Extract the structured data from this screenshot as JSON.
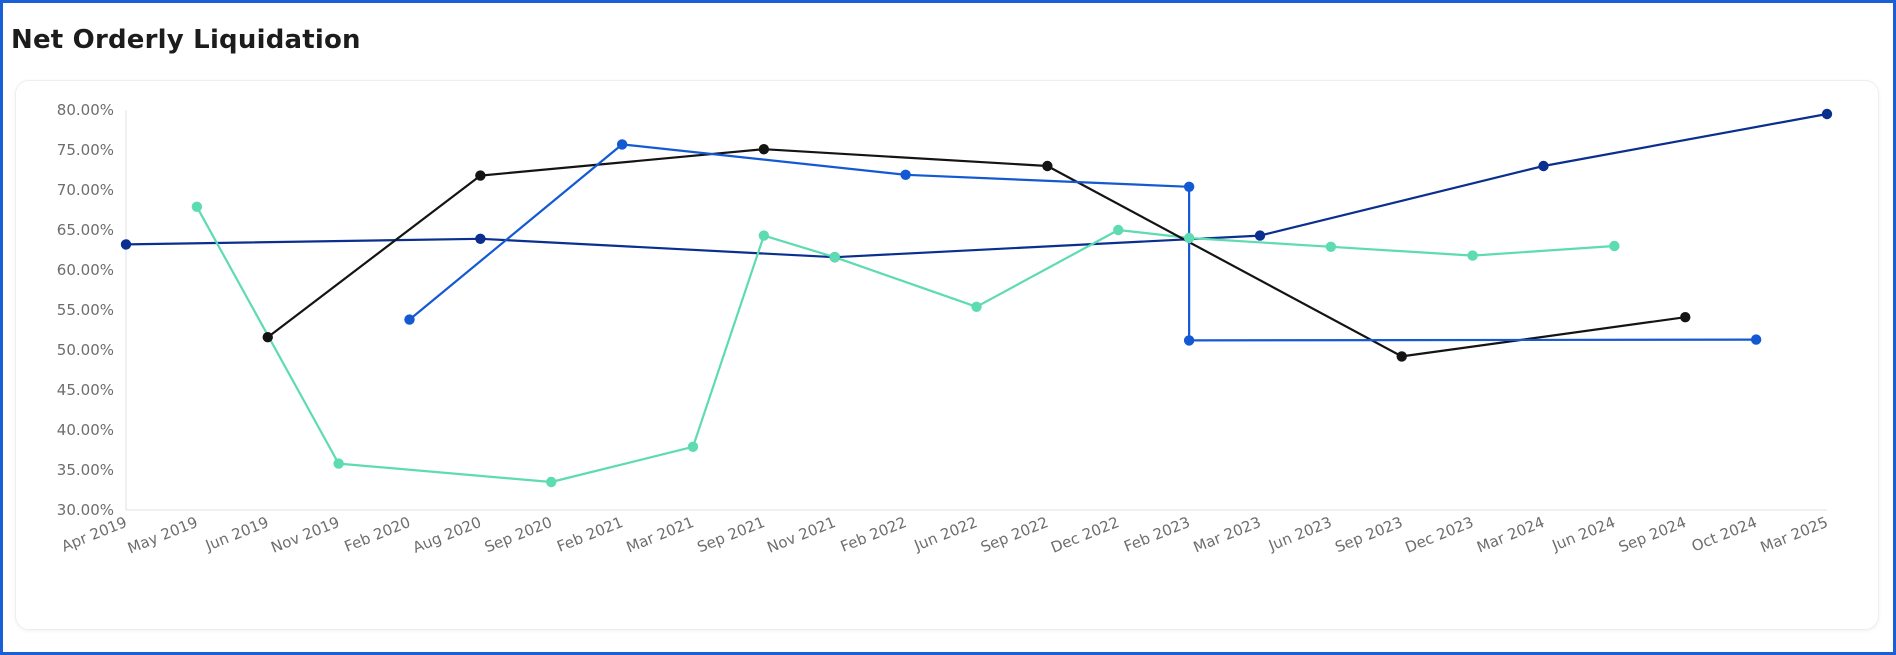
{
  "page": {
    "title": "Net Orderly Liquidation"
  },
  "chart_data": {
    "type": "line",
    "title": "Net Orderly Liquidation",
    "xlabel": "",
    "ylabel": "",
    "categories": [
      "Apr 2019",
      "May 2019",
      "Jun 2019",
      "Nov 2019",
      "Feb 2020",
      "Aug 2020",
      "Sep 2020",
      "Feb 2021",
      "Mar 2021",
      "Sep 2021",
      "Nov 2021",
      "Feb 2022",
      "Jun 2022",
      "Sep 2022",
      "Dec 2022",
      "Feb 2023",
      "Mar 2023",
      "Jun 2023",
      "Sep 2023",
      "Dec 2023",
      "Mar 2024",
      "Jun 2024",
      "Sep 2024",
      "Oct 2024",
      "Mar 2025"
    ],
    "ylim": [
      30,
      80
    ],
    "yticks": [
      30,
      35,
      40,
      45,
      50,
      55,
      60,
      65,
      70,
      75,
      80
    ],
    "ytick_labels": [
      "30.00%",
      "35.00%",
      "40.00%",
      "45.00%",
      "50.00%",
      "55.00%",
      "60.00%",
      "65.00%",
      "70.00%",
      "75.00%",
      "80.00%"
    ],
    "grid": false,
    "legend": "none",
    "series": [
      {
        "color": "#0a2f8f",
        "points": [
          [
            "Apr 2019",
            63.2
          ],
          [
            "Aug 2020",
            63.9
          ],
          [
            "Nov 2021",
            61.6
          ],
          [
            "Mar 2023",
            64.3
          ],
          [
            "Mar 2024",
            73.0
          ],
          [
            "Mar 2025",
            79.5
          ]
        ]
      },
      {
        "color": "#5ddbb1",
        "points": [
          [
            "May 2019",
            67.9
          ],
          [
            "Nov 2019",
            35.8
          ],
          [
            "Sep 2020",
            33.5
          ],
          [
            "Mar 2021",
            37.9
          ],
          [
            "Sep 2021",
            64.3
          ],
          [
            "Nov 2021",
            61.6
          ],
          [
            "Jun 2022",
            55.4
          ],
          [
            "Dec 2022",
            65.0
          ],
          [
            "Feb 2023",
            64.0
          ],
          [
            "Jun 2023",
            62.9
          ],
          [
            "Dec 2023",
            61.8
          ],
          [
            "Jun 2024",
            63.0
          ]
        ]
      },
      {
        "color": "#141414",
        "points": [
          [
            "Jun 2019",
            51.6
          ],
          [
            "Aug 2020",
            71.8
          ],
          [
            "Sep 2021",
            75.1
          ],
          [
            "Sep 2022",
            73.0
          ],
          [
            "Sep 2023",
            49.2
          ],
          [
            "Sep 2024",
            54.1
          ]
        ]
      },
      {
        "color": "#1459d4",
        "points": [
          [
            "Feb 2020",
            53.8
          ],
          [
            "Feb 2021",
            75.7
          ],
          [
            "Feb 2022",
            71.9
          ],
          [
            "Feb 2023",
            70.4
          ],
          [
            "Feb 2023",
            51.2
          ],
          [
            "Oct 2024",
            51.3
          ]
        ]
      }
    ]
  }
}
